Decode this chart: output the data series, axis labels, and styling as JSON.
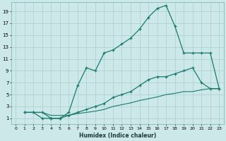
{
  "xlabel": "Humidex (Indice chaleur)",
  "bg_color": "#cce8e8",
  "line_color": "#1a7a6e",
  "grid_color": "#aacece",
  "xlim": [
    -0.5,
    23.5
  ],
  "ylim": [
    0,
    20.5
  ],
  "xticks": [
    0,
    1,
    2,
    3,
    4,
    5,
    6,
    7,
    8,
    9,
    10,
    11,
    12,
    13,
    14,
    15,
    16,
    17,
    18,
    19,
    20,
    21,
    22,
    23
  ],
  "yticks": [
    1,
    3,
    5,
    7,
    9,
    11,
    13,
    15,
    17,
    19
  ],
  "curve1_x": [
    1,
    2,
    3,
    4,
    5,
    6,
    7,
    8,
    9,
    10,
    11,
    12,
    13,
    14,
    15,
    16,
    17,
    18,
    19,
    20,
    21,
    22,
    23
  ],
  "curve1_y": [
    2,
    2,
    1,
    1,
    1,
    2,
    6.5,
    9.5,
    9,
    12,
    12.5,
    13.5,
    14.5,
    16,
    18,
    19.5,
    20,
    16.5,
    12,
    12,
    12,
    12,
    6
  ],
  "curve2_x": [
    1,
    2,
    3,
    4,
    5,
    6,
    7,
    8,
    9,
    10,
    11,
    12,
    13,
    14,
    15,
    16,
    17,
    18,
    19,
    20,
    21,
    22,
    23
  ],
  "curve2_y": [
    2,
    2,
    2,
    1,
    1,
    1.5,
    2,
    2.5,
    3,
    3.5,
    4.5,
    5,
    5.5,
    6.5,
    7.5,
    8,
    8,
    8.5,
    9,
    9.5,
    7,
    6,
    6
  ],
  "curve3_x": [
    1,
    2,
    3,
    4,
    5,
    6,
    7,
    8,
    9,
    10,
    11,
    12,
    13,
    14,
    15,
    16,
    17,
    18,
    19,
    20,
    21,
    22,
    23
  ],
  "curve3_y": [
    2,
    2,
    2,
    1.5,
    1.5,
    1.5,
    1.8,
    2,
    2.2,
    2.5,
    3,
    3.3,
    3.6,
    4,
    4.3,
    4.6,
    5,
    5.2,
    5.5,
    5.5,
    5.8,
    6,
    6
  ]
}
